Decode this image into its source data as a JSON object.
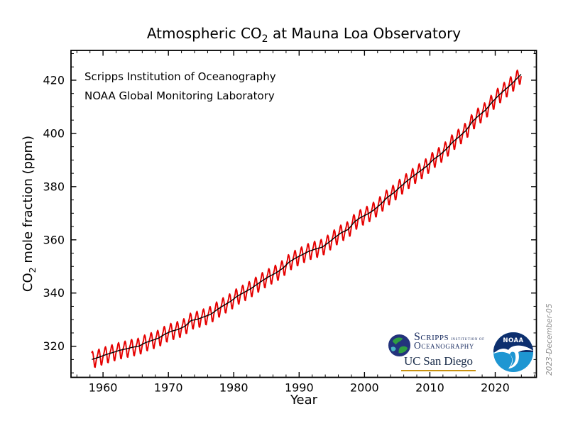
{
  "chart": {
    "title_pre": "Atmospheric CO",
    "title_sub": "2",
    "title_post": " at Mauna Loa Observatory",
    "annotation_line1": "Scripps Institution of Oceanography",
    "annotation_line2": "NOAA Global Monitoring Laboratory",
    "xlabel": "Year",
    "ylabel_pre": "CO",
    "ylabel_sub": "2",
    "ylabel_post": " mole fraction (ppm)",
    "date_stamp": "2023-December-05"
  },
  "chart_data": {
    "type": "line",
    "title": "Atmospheric CO2 at Mauna Loa Observatory",
    "xlabel": "Year",
    "ylabel": "CO2 mole fraction (ppm)",
    "grid": false,
    "legend_position": "none",
    "tick_direction": "in, mirrored on all four spines",
    "xlim": [
      1955.1,
      2026.3
    ],
    "ylim": [
      308.3,
      431.2
    ],
    "xticks": [
      1960,
      1970,
      1980,
      1990,
      2000,
      2010,
      2020
    ],
    "yticks": [
      320,
      340,
      360,
      380,
      400,
      420
    ],
    "x_minor_step": 2,
    "y_minor_step": 5,
    "line_colors": {
      "monthly": "#e60000",
      "trend": "#000000"
    },
    "start_time": 1958.21,
    "end_time": 2023.92,
    "trend_start_year": 1958,
    "trend_years_note": "annual deseasonalized CO2 (ppm), value centered at year+0.5, 1958-2023",
    "trend_ppm": [
      315.2,
      315.98,
      316.91,
      317.64,
      318.45,
      318.99,
      319.62,
      320.04,
      321.37,
      322.18,
      323.05,
      324.62,
      325.68,
      326.32,
      327.46,
      329.68,
      330.19,
      331.12,
      332.03,
      333.84,
      335.41,
      336.84,
      338.76,
      340.12,
      341.48,
      343.15,
      344.87,
      346.35,
      347.61,
      349.31,
      351.69,
      353.2,
      354.45,
      355.7,
      356.54,
      357.21,
      358.96,
      360.97,
      362.74,
      363.88,
      366.84,
      368.54,
      369.71,
      371.32,
      373.45,
      375.98,
      377.7,
      379.98,
      382.09,
      384.02,
      385.83,
      387.64,
      390.1,
      391.85,
      394.06,
      396.74,
      398.81,
      401.01,
      404.41,
      406.76,
      408.72,
      411.66,
      414.24,
      416.45,
      418.56,
      421.08
    ],
    "seasonal_cycle_ppm_by_month": [
      0.0,
      0.7,
      1.4,
      2.6,
      3.0,
      2.3,
      0.7,
      -1.4,
      -3.1,
      -3.3,
      -2.1,
      -0.9
    ]
  },
  "logos": {
    "scripps": {
      "line1": "Scripps",
      "line1_small": "Institution of",
      "line2": "Oceanography",
      "ucsd": "UC San Diego",
      "navy": "#16295e",
      "gold": "#c89212",
      "globe_blue": "#23337c",
      "globe_green": "#2f9e41"
    },
    "noaa": {
      "label": "NOAA",
      "navy": "#0d2f6e",
      "blue": "#1e96d2"
    }
  }
}
